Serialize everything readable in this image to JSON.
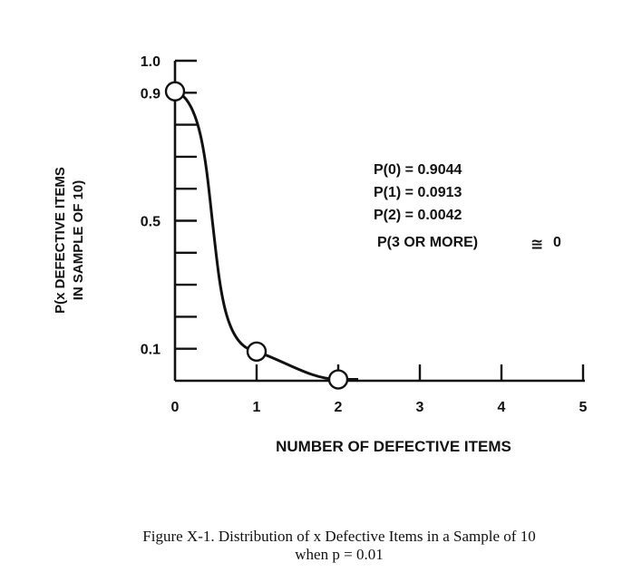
{
  "chart_data": {
    "type": "line",
    "xlabel": "NUMBER OF DEFECTIVE ITEMS",
    "ylabel_line1": "P(x DEFECTIVE ITEMS",
    "ylabel_line2": "IN SAMPLE OF 10)",
    "x_ticks": [
      "0",
      "1",
      "2",
      "3",
      "4",
      "5"
    ],
    "y_tick_labels": [
      "1.0",
      "0.9",
      "0.5",
      "0.1"
    ],
    "y_tick_values": [
      1.0,
      0.9,
      0.5,
      0.1
    ],
    "xlim": [
      0,
      5
    ],
    "ylim": [
      0,
      1.0
    ],
    "points": [
      {
        "x": 0,
        "y": 0.9044
      },
      {
        "x": 1,
        "y": 0.0913
      },
      {
        "x": 2,
        "y": 0.0042
      }
    ],
    "annotations": [
      "P(0)  =  0.9044",
      "P(1)  =  0.0913",
      "P(2)  =  0.0042",
      "P(3 OR MORE)"
    ],
    "approx_symbol": "≅",
    "approx_value": "0",
    "grid": false
  },
  "caption": {
    "line1": "Figure X-1.  Distribution of x Defective Items in a Sample of 10",
    "line2": "when p = 0.01"
  }
}
